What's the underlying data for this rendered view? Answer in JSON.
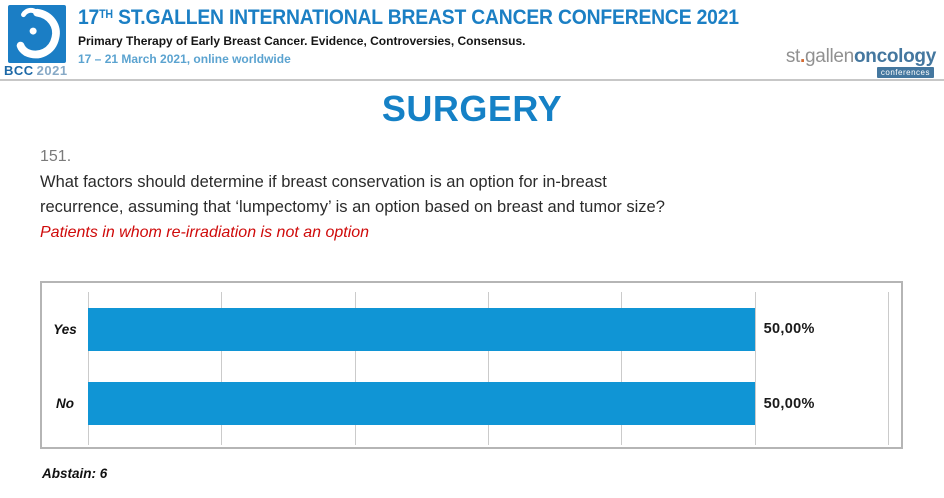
{
  "header": {
    "logo": {
      "bcc": "BCC",
      "year": "2021"
    },
    "title_num": "17",
    "title_sup": "TH",
    "title_rest": " ST.GALLEN INTERNATIONAL BREAST CANCER CONFERENCE 2021",
    "subtitle": "Primary Therapy of Early Breast Cancer. Evidence, Controversies, Consensus.",
    "date_line": "17 – 21 March 2021, online worldwide",
    "brand": {
      "st": "st",
      "dot": ".",
      "gallen": "gallen",
      "oncology": "oncology",
      "conferences": "conferences"
    }
  },
  "slide": {
    "section_title": "SURGERY",
    "question_number": "151.",
    "question_line1": "What factors should determine if breast conservation is an option for in-breast",
    "question_line2": "recurrence, assuming that ‘lumpectomy’ is an option based on breast and tumor size?",
    "question_note": "Patients in whom re-irradiation is not an option",
    "abstain_label": "Abstain: 6"
  },
  "chart_data": {
    "type": "bar",
    "orientation": "horizontal",
    "categories": [
      "Yes",
      "No"
    ],
    "values": [
      50.0,
      50.0
    ],
    "value_labels": [
      "50,00%",
      "50,00%"
    ],
    "xlim": [
      0,
      60
    ],
    "gridline_step": 10,
    "grid": true,
    "legend": false,
    "bar_color": "#1095d5",
    "abstain_count": 6
  },
  "colors": {
    "accent_blue": "#1581c6",
    "header_blue": "#1b7fc4",
    "light_blue": "#5ba3d0",
    "bar_blue": "#1095d5",
    "note_red": "#cf0a0a",
    "brand_gray": "#919191",
    "brand_blue": "#44779f",
    "logo_blue": "#1b7ec5"
  }
}
